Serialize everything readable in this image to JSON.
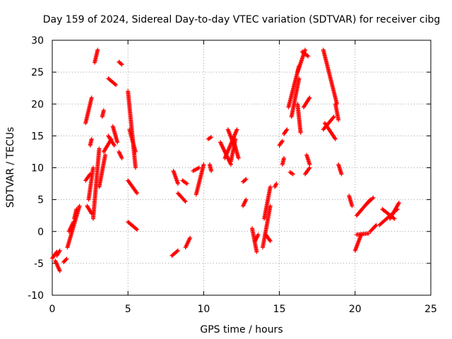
{
  "chart_data": {
    "type": "scatter",
    "title": "Day 159 of 2024, Sidereal Day-to-day VTEC variation (SDTVAR) for receiver cibg",
    "xlabel": "GPS time / hours",
    "ylabel": "SDTVAR / TECUs",
    "xlim": [
      0,
      25
    ],
    "ylim": [
      -10,
      30
    ],
    "xticks": [
      0,
      5,
      10,
      15,
      20,
      25
    ],
    "yticks": [
      -10,
      -5,
      0,
      5,
      10,
      15,
      20,
      25,
      30
    ],
    "grid": true,
    "marker": "+",
    "marker_color": "#ff0000",
    "series": [
      {
        "name": "t0a",
        "x": [
          0.0,
          0.3
        ],
        "y": [
          -4.2,
          -3.2
        ]
      },
      {
        "name": "t0b",
        "x": [
          0.2,
          0.5
        ],
        "y": [
          -4.6,
          -6.2
        ]
      },
      {
        "name": "t0c",
        "x": [
          0.3,
          0.5
        ],
        "y": [
          -3.8,
          -3.0
        ]
      },
      {
        "name": "t0d",
        "x": [
          0.75,
          0.95
        ],
        "y": [
          -4.8,
          -4.3
        ]
      },
      {
        "name": "t1",
        "x": [
          1.0,
          1.8
        ],
        "y": [
          -2.5,
          4.0
        ]
      },
      {
        "name": "t2",
        "x": [
          1.1,
          1.4
        ],
        "y": [
          0.0,
          1.5
        ]
      },
      {
        "name": "t3",
        "x": [
          1.45,
          1.6
        ],
        "y": [
          2.0,
          3.5
        ]
      },
      {
        "name": "t4",
        "x": [
          2.2,
          2.6
        ],
        "y": [
          17.0,
          21.0
        ]
      },
      {
        "name": "t5",
        "x": [
          2.2,
          2.5
        ],
        "y": [
          8.0,
          9.0
        ]
      },
      {
        "name": "t6",
        "x": [
          2.3,
          2.6
        ],
        "y": [
          4.0,
          2.8
        ]
      },
      {
        "name": "t7",
        "x": [
          2.4,
          2.7
        ],
        "y": [
          5.0,
          10.0
        ]
      },
      {
        "name": "t8",
        "x": [
          2.5,
          2.6
        ],
        "y": [
          13.5,
          14.5
        ]
      },
      {
        "name": "t9",
        "x": [
          2.8,
          3.0
        ],
        "y": [
          26.5,
          28.5
        ]
      },
      {
        "name": "t10",
        "x": [
          2.7,
          3.1
        ],
        "y": [
          2.0,
          13.0
        ]
      },
      {
        "name": "t11",
        "x": [
          3.1,
          3.5
        ],
        "y": [
          7.0,
          12.0
        ]
      },
      {
        "name": "t12",
        "x": [
          3.3,
          3.4
        ],
        "y": [
          18.0,
          19.0
        ]
      },
      {
        "name": "t13",
        "x": [
          3.4,
          3.9
        ],
        "y": [
          12.5,
          14.5
        ]
      },
      {
        "name": "t14",
        "x": [
          3.7,
          4.2
        ],
        "y": [
          24.0,
          23.0
        ]
      },
      {
        "name": "t15",
        "x": [
          3.7,
          4.1
        ],
        "y": [
          15.0,
          13.5
        ]
      },
      {
        "name": "t16",
        "x": [
          4.0,
          4.3
        ],
        "y": [
          16.5,
          14.0
        ]
      },
      {
        "name": "t17",
        "x": [
          4.4,
          4.6
        ],
        "y": [
          26.6,
          26.2
        ]
      },
      {
        "name": "t18",
        "x": [
          4.4,
          4.6
        ],
        "y": [
          12.5,
          11.5
        ]
      },
      {
        "name": "t19",
        "x": [
          5.0,
          5.5
        ],
        "y": [
          22.0,
          10.0
        ]
      },
      {
        "name": "t20",
        "x": [
          5.1,
          5.5
        ],
        "y": [
          16.0,
          12.5
        ]
      },
      {
        "name": "t21",
        "x": [
          5.0,
          5.6
        ],
        "y": [
          8.0,
          6.0
        ]
      },
      {
        "name": "t22",
        "x": [
          5.0,
          5.6
        ],
        "y": [
          1.5,
          0.3
        ]
      },
      {
        "name": "t23",
        "x": [
          7.9,
          8.3
        ],
        "y": [
          -3.8,
          -3.0
        ]
      },
      {
        "name": "t24",
        "x": [
          8.0,
          8.3
        ],
        "y": [
          9.5,
          7.5
        ]
      },
      {
        "name": "t25",
        "x": [
          8.3,
          8.8
        ],
        "y": [
          6.0,
          4.7
        ]
      },
      {
        "name": "t26",
        "x": [
          8.6,
          8.9
        ],
        "y": [
          8.0,
          7.5
        ]
      },
      {
        "name": "t27",
        "x": [
          8.8,
          9.1
        ],
        "y": [
          -2.5,
          -1.0
        ]
      },
      {
        "name": "t28",
        "x": [
          9.3,
          9.7
        ],
        "y": [
          9.5,
          10.0
        ]
      },
      {
        "name": "t29",
        "x": [
          9.5,
          10.0
        ],
        "y": [
          5.8,
          10.5
        ]
      },
      {
        "name": "t30",
        "x": [
          10.3,
          10.5
        ],
        "y": [
          14.5,
          14.8
        ]
      },
      {
        "name": "t31",
        "x": [
          10.4,
          10.5
        ],
        "y": [
          10.5,
          9.5
        ]
      },
      {
        "name": "t32",
        "x": [
          11.1,
          11.8
        ],
        "y": [
          14.0,
          10.5
        ]
      },
      {
        "name": "t33",
        "x": [
          11.4,
          12.2
        ],
        "y": [
          11.5,
          16.0
        ]
      },
      {
        "name": "t34",
        "x": [
          11.8,
          12.1
        ],
        "y": [
          11.0,
          14.5
        ]
      },
      {
        "name": "t35",
        "x": [
          11.6,
          12.1
        ],
        "y": [
          16.0,
          13.0
        ]
      },
      {
        "name": "t36",
        "x": [
          12.0,
          12.3
        ],
        "y": [
          14.0,
          11.5
        ]
      },
      {
        "name": "t37",
        "x": [
          12.6,
          12.8
        ],
        "y": [
          7.8,
          8.2
        ]
      },
      {
        "name": "t38",
        "x": [
          12.6,
          12.8
        ],
        "y": [
          4.0,
          5.0
        ]
      },
      {
        "name": "t39",
        "x": [
          13.2,
          13.5
        ],
        "y": [
          0.5,
          -3.2
        ]
      },
      {
        "name": "t40",
        "x": [
          13.4,
          13.6
        ],
        "y": [
          -1.5,
          -0.5
        ]
      },
      {
        "name": "t41",
        "x": [
          13.9,
          14.4
        ],
        "y": [
          -2.5,
          4.0
        ]
      },
      {
        "name": "t42",
        "x": [
          14.0,
          14.4
        ],
        "y": [
          2.0,
          7.0
        ]
      },
      {
        "name": "t43",
        "x": [
          14.1,
          14.4
        ],
        "y": [
          -0.5,
          -1.5
        ]
      },
      {
        "name": "t44",
        "x": [
          14.7,
          14.8
        ],
        "y": [
          7.0,
          7.5
        ]
      },
      {
        "name": "t45",
        "x": [
          15.0,
          15.2
        ],
        "y": [
          13.5,
          14.2
        ]
      },
      {
        "name": "t46",
        "x": [
          15.2,
          15.3
        ],
        "y": [
          10.5,
          11.5
        ]
      },
      {
        "name": "t47",
        "x": [
          15.3,
          15.5
        ],
        "y": [
          15.3,
          16.0
        ]
      },
      {
        "name": "t48",
        "x": [
          15.7,
          15.9
        ],
        "y": [
          9.3,
          9.0
        ]
      },
      {
        "name": "t49",
        "x": [
          15.6,
          16.3
        ],
        "y": [
          19.5,
          26.0
        ]
      },
      {
        "name": "t50",
        "x": [
          15.8,
          16.3
        ],
        "y": [
          18.0,
          24.0
        ]
      },
      {
        "name": "t51",
        "x": [
          16.2,
          16.7
        ],
        "y": [
          25.0,
          28.5
        ]
      },
      {
        "name": "t52",
        "x": [
          16.5,
          16.9
        ],
        "y": [
          28.2,
          27.5
        ]
      },
      {
        "name": "t53",
        "x": [
          16.2,
          16.4
        ],
        "y": [
          20.0,
          15.5
        ]
      },
      {
        "name": "t54",
        "x": [
          16.8,
          17.0
        ],
        "y": [
          12.0,
          10.5
        ]
      },
      {
        "name": "t55",
        "x": [
          16.7,
          17.0
        ],
        "y": [
          9.0,
          10.0
        ]
      },
      {
        "name": "t56",
        "x": [
          16.6,
          17.0
        ],
        "y": [
          19.5,
          21.0
        ]
      },
      {
        "name": "t57",
        "x": [
          17.9,
          18.8
        ],
        "y": [
          28.5,
          20.0
        ]
      },
      {
        "name": "t58",
        "x": [
          17.9,
          18.6
        ],
        "y": [
          16.0,
          18.0
        ]
      },
      {
        "name": "t59",
        "x": [
          18.0,
          18.7
        ],
        "y": [
          17.0,
          14.5
        ]
      },
      {
        "name": "t60",
        "x": [
          18.7,
          18.9
        ],
        "y": [
          20.0,
          17.5
        ]
      },
      {
        "name": "t61",
        "x": [
          18.9,
          19.1
        ],
        "y": [
          10.5,
          9.0
        ]
      },
      {
        "name": "t62",
        "x": [
          19.6,
          19.8
        ],
        "y": [
          5.6,
          4.0
        ]
      },
      {
        "name": "t63",
        "x": [
          20.0,
          20.4
        ],
        "y": [
          -3.0,
          -0.5
        ]
      },
      {
        "name": "t64",
        "x": [
          20.1,
          20.9
        ],
        "y": [
          -0.5,
          -0.3
        ]
      },
      {
        "name": "t65",
        "x": [
          20.1,
          21.0
        ],
        "y": [
          2.5,
          5.0
        ]
      },
      {
        "name": "t66",
        "x": [
          20.8,
          21.2
        ],
        "y": [
          4.4,
          5.3
        ]
      },
      {
        "name": "t67",
        "x": [
          21.0,
          21.4
        ],
        "y": [
          0.0,
          1.0
        ]
      },
      {
        "name": "t68",
        "x": [
          21.6,
          22.8
        ],
        "y": [
          1.0,
          3.5
        ]
      },
      {
        "name": "t69",
        "x": [
          21.8,
          22.6
        ],
        "y": [
          3.5,
          2.0
        ]
      },
      {
        "name": "t70",
        "x": [
          22.3,
          22.9
        ],
        "y": [
          2.0,
          4.5
        ]
      }
    ]
  }
}
